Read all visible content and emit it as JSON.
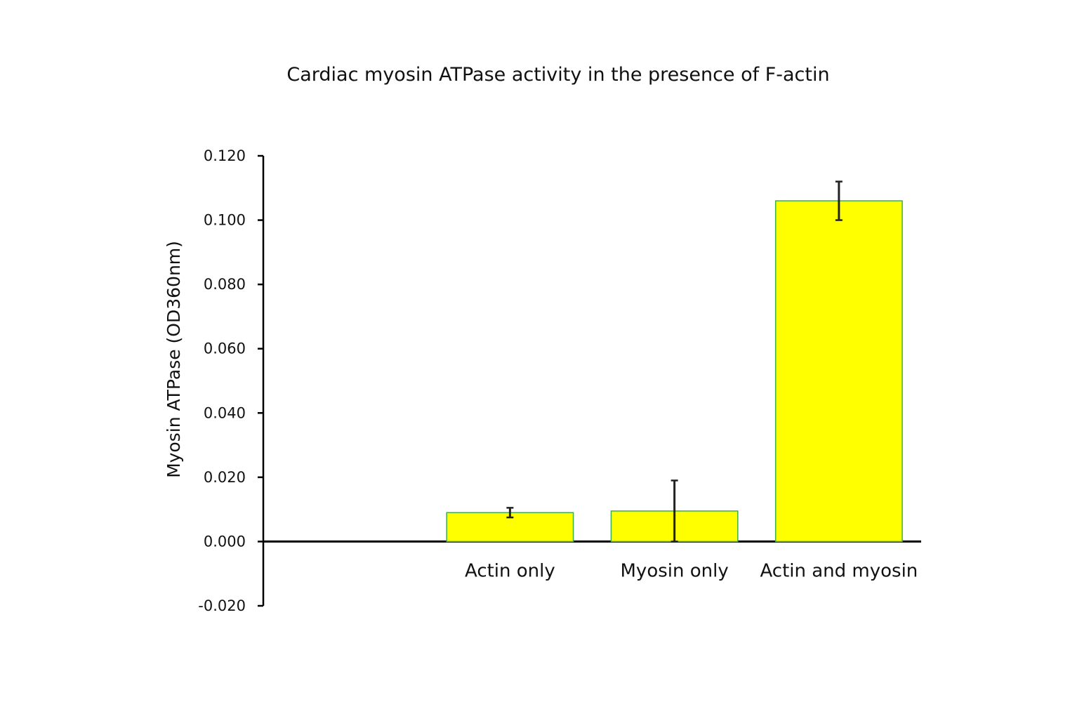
{
  "chart_data": {
    "type": "bar",
    "title": "Cardiac myosin ATPase activity in the presence of F-actin",
    "xlabel": "",
    "ylabel": "Myosin ATPase (OD360nm)",
    "categories": [
      "",
      "Actin only",
      "Myosin only",
      "Actin and myosin"
    ],
    "values": [
      null,
      0.009,
      0.0095,
      0.106
    ],
    "errors": [
      null,
      0.0015,
      0.0095,
      0.006
    ],
    "ylim": [
      -0.02,
      0.12
    ],
    "yticks": [
      0.12,
      0.1,
      0.08,
      0.06,
      0.04,
      0.02,
      0.0,
      -0.02
    ],
    "ytick_labels": [
      "0.120",
      "0.100",
      "0.080",
      "0.060",
      "0.040",
      "0.020",
      "0.000",
      "-0.020"
    ],
    "grid": false,
    "legend": "none",
    "colors": {
      "bar_fill": "#ffff00",
      "bar_edge": "#3fae3f",
      "axis": "#000000",
      "error_bar": "#222222"
    }
  }
}
